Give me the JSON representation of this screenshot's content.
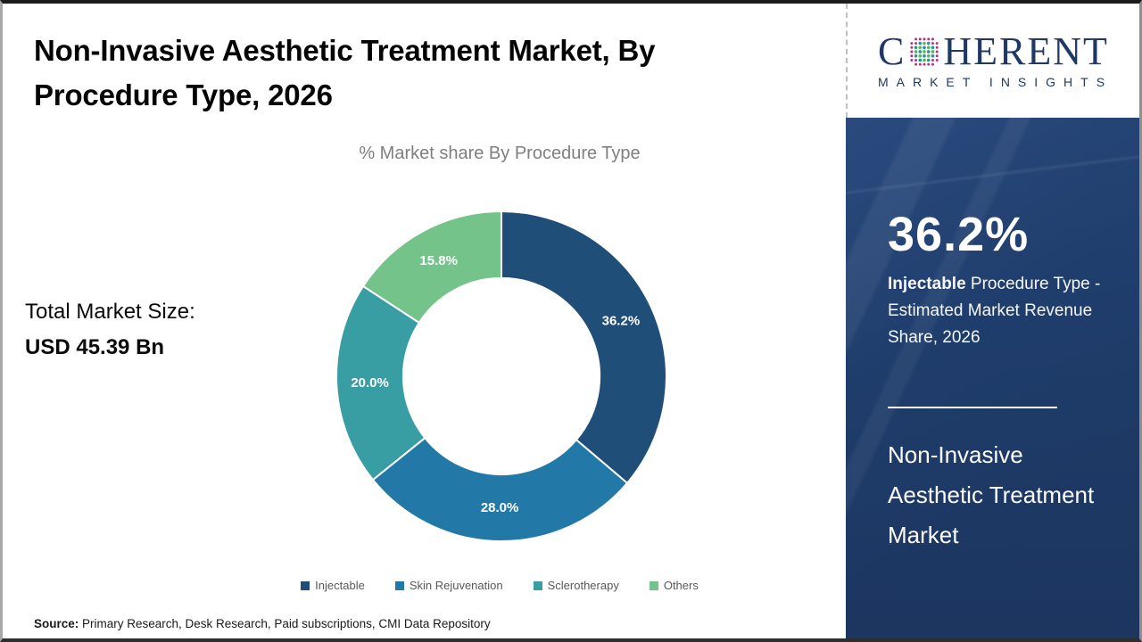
{
  "title": "Non-Invasive Aesthetic Treatment Market, By Procedure Type, 2026",
  "subtitle": "% Market share By Procedure Type",
  "total_market": {
    "label": "Total Market Size:",
    "value": "USD 45.39 Bn"
  },
  "source": {
    "label": "Source:",
    "text": " Primary Research, Desk Research, Paid subscriptions, CMI Data Repository"
  },
  "chart_data": {
    "type": "pie",
    "subtype": "donut",
    "title": "% Market share By Procedure Type",
    "categories": [
      "Injectable",
      "Skin Rejuvenation",
      "Sclerotherapy",
      "Others"
    ],
    "values": [
      36.2,
      28.0,
      20.0,
      15.8
    ],
    "labels": [
      "36.2%",
      "28.0%",
      "20.0%",
      "15.8%"
    ],
    "colors": [
      "#1F4E79",
      "#2279A8",
      "#389EA4",
      "#74C38B"
    ],
    "start_angle_deg": 0,
    "direction": "clockwise",
    "inner_radius_ratio": 0.595,
    "label_color": "#ffffff",
    "legend_position": "bottom"
  },
  "sidebar": {
    "brand": {
      "name_c": "C",
      "name_rest": "HERENT",
      "tagline": "MARKET INSIGHTS",
      "navy": "#1f3864",
      "globe_colors": {
        "outer": "#c0267e",
        "teal": "#1e9aa0",
        "green": "#5cb849"
      }
    },
    "stat_value": "36.2%",
    "stat_desc_bold": "Injectable",
    "stat_desc_rest": " Procedure Type - Estimated Market Revenue Share, 2026",
    "market_name": "Non-Invasive Aesthetic Treatment Market",
    "bg_color": "#1e3a66"
  }
}
